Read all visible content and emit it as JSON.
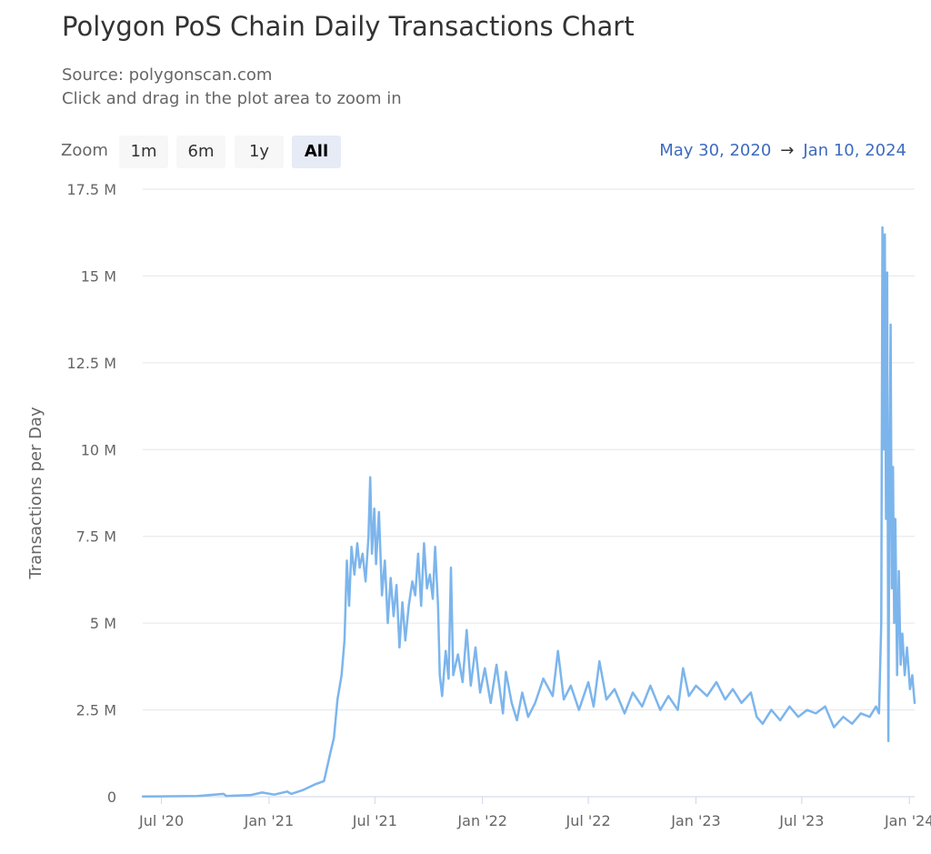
{
  "title": "Polygon PoS Chain Daily Transactions Chart",
  "subtitle_lines": [
    "Source: polygonscan.com",
    "Click and drag in the plot area to zoom in"
  ],
  "zoom": {
    "label": "Zoom",
    "buttons": [
      {
        "label": "1m",
        "selected": false
      },
      {
        "label": "6m",
        "selected": false
      },
      {
        "label": "1y",
        "selected": false
      },
      {
        "label": "All",
        "selected": true
      }
    ]
  },
  "range": {
    "from": "May 30, 2020",
    "arrow": "→",
    "to": "Jan 10, 2024"
  },
  "colors": {
    "line": "#7cb5ec",
    "grid": "#e6e6e6",
    "range_text": "#3e6bbf",
    "selected_button": "#e6ebf5"
  },
  "chart_data": {
    "type": "line",
    "title": "Polygon PoS Chain Daily Transactions Chart",
    "xlabel": "",
    "ylabel": "Transactions per Day",
    "x_range": [
      "2020-05-30",
      "2024-01-10"
    ],
    "ylim": [
      0,
      17500000
    ],
    "yticks": [
      {
        "value": 0,
        "label": "0"
      },
      {
        "value": 2500000,
        "label": "2.5 M"
      },
      {
        "value": 5000000,
        "label": "5 M"
      },
      {
        "value": 7500000,
        "label": "7.5 M"
      },
      {
        "value": 10000000,
        "label": "10 M"
      },
      {
        "value": 12500000,
        "label": "12.5 M"
      },
      {
        "value": 15000000,
        "label": "15 M"
      },
      {
        "value": 17500000,
        "label": "17.5 M"
      }
    ],
    "xticks": [
      {
        "date": "2020-07-01",
        "label": "Jul '20"
      },
      {
        "date": "2021-01-01",
        "label": "Jan '21"
      },
      {
        "date": "2021-07-01",
        "label": "Jul '21"
      },
      {
        "date": "2022-01-01",
        "label": "Jan '22"
      },
      {
        "date": "2022-07-01",
        "label": "Jul '22"
      },
      {
        "date": "2023-01-01",
        "label": "Jan '23"
      },
      {
        "date": "2023-07-01",
        "label": "Jul '23"
      },
      {
        "date": "2024-01-01",
        "label": "Jan '24"
      }
    ],
    "grid": true,
    "legend": "none",
    "series": [
      {
        "points": [
          [
            "2020-05-30",
            5000
          ],
          [
            "2020-07-01",
            10000
          ],
          [
            "2020-09-01",
            20000
          ],
          [
            "2020-10-15",
            80000
          ],
          [
            "2020-10-20",
            20000
          ],
          [
            "2020-12-01",
            50000
          ],
          [
            "2020-12-20",
            120000
          ],
          [
            "2021-01-10",
            60000
          ],
          [
            "2021-02-01",
            150000
          ],
          [
            "2021-02-08",
            80000
          ],
          [
            "2021-03-01",
            200000
          ],
          [
            "2021-03-20",
            350000
          ],
          [
            "2021-04-05",
            450000
          ],
          [
            "2021-04-15",
            1200000
          ],
          [
            "2021-04-22",
            1700000
          ],
          [
            "2021-04-28",
            2800000
          ],
          [
            "2021-05-05",
            3500000
          ],
          [
            "2021-05-10",
            4500000
          ],
          [
            "2021-05-14",
            6800000
          ],
          [
            "2021-05-18",
            5500000
          ],
          [
            "2021-05-22",
            7200000
          ],
          [
            "2021-05-27",
            6400000
          ],
          [
            "2021-06-01",
            7300000
          ],
          [
            "2021-06-05",
            6600000
          ],
          [
            "2021-06-10",
            7000000
          ],
          [
            "2021-06-15",
            6200000
          ],
          [
            "2021-06-20",
            7500000
          ],
          [
            "2021-06-23",
            9200000
          ],
          [
            "2021-06-26",
            7000000
          ],
          [
            "2021-06-30",
            8300000
          ],
          [
            "2021-07-03",
            6700000
          ],
          [
            "2021-07-08",
            8200000
          ],
          [
            "2021-07-13",
            5800000
          ],
          [
            "2021-07-18",
            6800000
          ],
          [
            "2021-07-23",
            5000000
          ],
          [
            "2021-07-28",
            6300000
          ],
          [
            "2021-08-02",
            5200000
          ],
          [
            "2021-08-07",
            6100000
          ],
          [
            "2021-08-12",
            4300000
          ],
          [
            "2021-08-17",
            5600000
          ],
          [
            "2021-08-22",
            4500000
          ],
          [
            "2021-08-28",
            5500000
          ],
          [
            "2021-09-03",
            6200000
          ],
          [
            "2021-09-08",
            5800000
          ],
          [
            "2021-09-13",
            7000000
          ],
          [
            "2021-09-18",
            5500000
          ],
          [
            "2021-09-23",
            7300000
          ],
          [
            "2021-09-28",
            6000000
          ],
          [
            "2021-10-03",
            6400000
          ],
          [
            "2021-10-08",
            5700000
          ],
          [
            "2021-10-12",
            7200000
          ],
          [
            "2021-10-17",
            5500000
          ],
          [
            "2021-10-20",
            3500000
          ],
          [
            "2021-10-24",
            2900000
          ],
          [
            "2021-10-30",
            4200000
          ],
          [
            "2021-11-04",
            3400000
          ],
          [
            "2021-11-08",
            6600000
          ],
          [
            "2021-11-12",
            3500000
          ],
          [
            "2021-11-20",
            4100000
          ],
          [
            "2021-11-28",
            3300000
          ],
          [
            "2021-12-05",
            4800000
          ],
          [
            "2021-12-12",
            3200000
          ],
          [
            "2021-12-20",
            4300000
          ],
          [
            "2021-12-28",
            3000000
          ],
          [
            "2022-01-05",
            3700000
          ],
          [
            "2022-01-15",
            2700000
          ],
          [
            "2022-01-25",
            3800000
          ],
          [
            "2022-02-05",
            2400000
          ],
          [
            "2022-02-10",
            3600000
          ],
          [
            "2022-02-20",
            2700000
          ],
          [
            "2022-03-01",
            2200000
          ],
          [
            "2022-03-10",
            3000000
          ],
          [
            "2022-03-20",
            2300000
          ],
          [
            "2022-04-01",
            2700000
          ],
          [
            "2022-04-15",
            3400000
          ],
          [
            "2022-05-01",
            2900000
          ],
          [
            "2022-05-10",
            4200000
          ],
          [
            "2022-05-20",
            2800000
          ],
          [
            "2022-06-01",
            3200000
          ],
          [
            "2022-06-15",
            2500000
          ],
          [
            "2022-07-01",
            3300000
          ],
          [
            "2022-07-10",
            2600000
          ],
          [
            "2022-07-20",
            3900000
          ],
          [
            "2022-08-01",
            2800000
          ],
          [
            "2022-08-15",
            3100000
          ],
          [
            "2022-09-01",
            2400000
          ],
          [
            "2022-09-15",
            3000000
          ],
          [
            "2022-10-01",
            2600000
          ],
          [
            "2022-10-15",
            3200000
          ],
          [
            "2022-11-01",
            2500000
          ],
          [
            "2022-11-15",
            2900000
          ],
          [
            "2022-12-01",
            2500000
          ],
          [
            "2022-12-10",
            3700000
          ],
          [
            "2022-12-20",
            2900000
          ],
          [
            "2023-01-01",
            3200000
          ],
          [
            "2023-01-20",
            2900000
          ],
          [
            "2023-02-05",
            3300000
          ],
          [
            "2023-02-20",
            2800000
          ],
          [
            "2023-03-05",
            3100000
          ],
          [
            "2023-03-20",
            2700000
          ],
          [
            "2023-04-05",
            3000000
          ],
          [
            "2023-04-15",
            2300000
          ],
          [
            "2023-04-25",
            2100000
          ],
          [
            "2023-05-10",
            2500000
          ],
          [
            "2023-05-25",
            2200000
          ],
          [
            "2023-06-10",
            2600000
          ],
          [
            "2023-06-25",
            2300000
          ],
          [
            "2023-07-10",
            2500000
          ],
          [
            "2023-07-25",
            2400000
          ],
          [
            "2023-08-10",
            2600000
          ],
          [
            "2023-08-25",
            2000000
          ],
          [
            "2023-09-10",
            2300000
          ],
          [
            "2023-09-25",
            2100000
          ],
          [
            "2023-10-10",
            2400000
          ],
          [
            "2023-10-25",
            2300000
          ],
          [
            "2023-11-05",
            2600000
          ],
          [
            "2023-11-10",
            2400000
          ],
          [
            "2023-11-14",
            5000000
          ],
          [
            "2023-11-16",
            16400000
          ],
          [
            "2023-11-18",
            10000000
          ],
          [
            "2023-11-20",
            16200000
          ],
          [
            "2023-11-22",
            8000000
          ],
          [
            "2023-11-24",
            15100000
          ],
          [
            "2023-11-26",
            1600000
          ],
          [
            "2023-11-28",
            9000000
          ],
          [
            "2023-11-30",
            13600000
          ],
          [
            "2023-12-02",
            6000000
          ],
          [
            "2023-12-04",
            9500000
          ],
          [
            "2023-12-06",
            5000000
          ],
          [
            "2023-12-08",
            8000000
          ],
          [
            "2023-12-11",
            3500000
          ],
          [
            "2023-12-14",
            6500000
          ],
          [
            "2023-12-17",
            3800000
          ],
          [
            "2023-12-20",
            4700000
          ],
          [
            "2023-12-24",
            3500000
          ],
          [
            "2023-12-28",
            4300000
          ],
          [
            "2024-01-02",
            3100000
          ],
          [
            "2024-01-06",
            3500000
          ],
          [
            "2024-01-10",
            2700000
          ]
        ]
      }
    ]
  }
}
